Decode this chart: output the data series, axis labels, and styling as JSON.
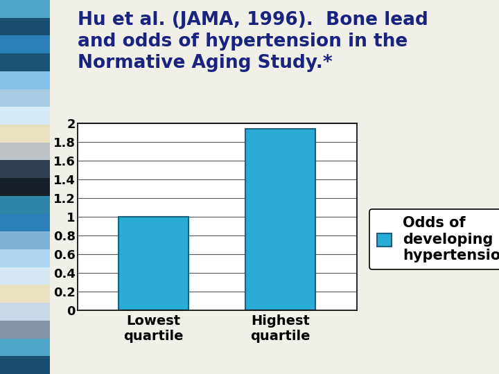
{
  "title_line1": "Hu et al. (JAMA, 1996).  Bone lead",
  "title_line2": "and odds of hypertension in the",
  "title_line3": "Normative Aging Study.*",
  "categories": [
    "Lowest\nquartile",
    "Highest\nquartile"
  ],
  "values": [
    1.0,
    1.94
  ],
  "bar_color": "#29ABD4",
  "bar_edge_color": "#1A6080",
  "title_color": "#1A237E",
  "background_color": "#F0EFE8",
  "plot_bg_color": "#FFFFFF",
  "ylim": [
    0,
    2.0
  ],
  "yticks": [
    0,
    0.2,
    0.4,
    0.6,
    0.8,
    1.0,
    1.2,
    1.4,
    1.6,
    1.8,
    2.0
  ],
  "ytick_labels": [
    "0",
    "0.2",
    "0.4",
    "0.6",
    "0.8",
    "1",
    "1.2",
    "1.4",
    "1.6",
    "1.8",
    "2"
  ],
  "legend_label": "Odds of\ndeveloping\nhypertension",
  "title_fontsize": 19,
  "tick_fontsize": 13,
  "xlabel_fontsize": 14,
  "legend_fontsize": 15,
  "bar_width": 0.55,
  "left_strip_colors": [
    "#4DA6C8",
    "#1B4F72",
    "#2980B9",
    "#1A5276",
    "#85C1E9",
    "#A9CCE3",
    "#D6EAF8",
    "#E8E0C0",
    "#BDC3C7",
    "#2C3E50",
    "#17202A",
    "#2E86AB",
    "#2980B9",
    "#7FB3D3",
    "#AED6F1",
    "#D4E6F1",
    "#E8E0C0",
    "#C8D6E5",
    "#8395A7",
    "#4DA6C8",
    "#1B4F72"
  ]
}
